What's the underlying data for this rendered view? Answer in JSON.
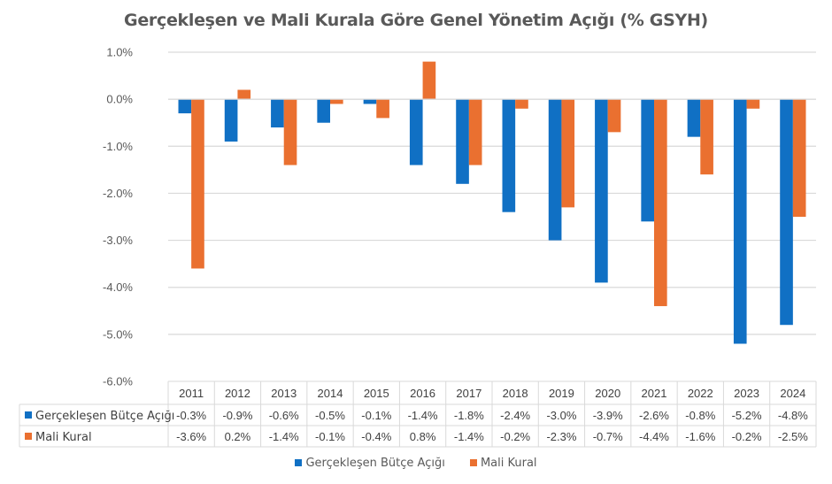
{
  "chart_data": {
    "type": "bar",
    "title": "Gerçekleşen  ve Mali Kurala Göre Genel Yönetim Açığı (% GSYH)",
    "xlabel": "",
    "ylabel": "",
    "ylim": [
      -6.0,
      1.0
    ],
    "yticks": [
      1.0,
      0.0,
      -1.0,
      -2.0,
      -3.0,
      -4.0,
      -5.0,
      -6.0
    ],
    "ytick_labels": [
      "1.0%",
      "0.0%",
      "-1.0%",
      "-2.0%",
      "-3.0%",
      "-4.0%",
      "-5.0%",
      "-6.0%"
    ],
    "grid": true,
    "legend_position": "bottom",
    "data_table": true,
    "categories": [
      "2011",
      "2012",
      "2013",
      "2014",
      "2015",
      "2016",
      "2017",
      "2018",
      "2019",
      "2020",
      "2021",
      "2022",
      "2023",
      "2024"
    ],
    "series": [
      {
        "name": "Gerçekleşen Bütçe Açığı",
        "color": "#1070C4",
        "values": [
          -0.3,
          -0.9,
          -0.6,
          -0.5,
          -0.1,
          -1.4,
          -1.8,
          -2.4,
          -3.0,
          -3.9,
          -2.6,
          -0.8,
          -5.2,
          -4.8
        ],
        "labels": [
          "-0.3%",
          "-0.9%",
          "-0.6%",
          "-0.5%",
          "-0.1%",
          "-1.4%",
          "-1.8%",
          "-2.4%",
          "-3.0%",
          "-3.9%",
          "-2.6%",
          "-0.8%",
          "-5.2%",
          "-4.8%"
        ]
      },
      {
        "name": "Mali Kural",
        "color": "#EA7030",
        "values": [
          -3.6,
          0.2,
          -1.4,
          -0.1,
          -0.4,
          0.8,
          -1.4,
          -0.2,
          -2.3,
          -0.7,
          -4.4,
          -1.6,
          -0.2,
          -2.5
        ],
        "labels": [
          "-3.6%",
          "0.2%",
          "-1.4%",
          "-0.1%",
          "-0.4%",
          "0.8%",
          "-1.4%",
          "-0.2%",
          "-2.3%",
          "-0.7%",
          "-4.4%",
          "-1.6%",
          "-0.2%",
          "-2.5%"
        ]
      }
    ]
  }
}
